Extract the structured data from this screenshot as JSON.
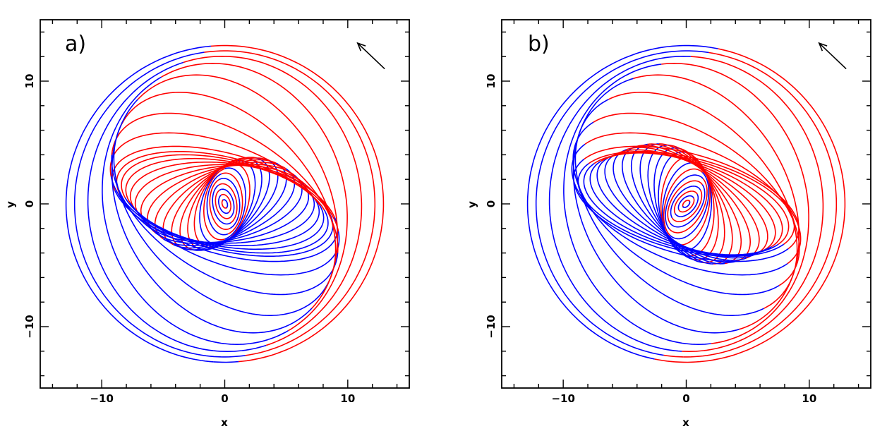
{
  "chart_data": [
    {
      "type": "line",
      "panel_label": "a)",
      "xlabel": "x",
      "ylabel": "y",
      "xlim": [
        -15,
        15
      ],
      "ylim": [
        -15,
        15
      ],
      "xticks_labeled": [
        -10,
        0,
        10
      ],
      "yticks_labeled": [
        -10,
        0,
        10
      ],
      "tick_labels": {
        "x": [
          "−10",
          "0",
          "10"
        ],
        "y": [
          "−10",
          "0",
          "10"
        ]
      },
      "series_colors": [
        "#ff0000",
        "#0000ff"
      ],
      "orbit_family": {
        "description_shown": "nested elliptical orbits, twisted into two spiral arms, colored red/blue by sign",
        "count": 30,
        "radius_min": 0.35,
        "radius_max": 12.9,
        "axis_ratio_inner": 0.6,
        "axis_ratio_middle": 0.42,
        "axis_ratio_outer": 1.0,
        "bar_semi_major": 9.0,
        "bar_orientation_deg": -14,
        "inner_twist_deg": 120,
        "outer_twist_deg": -80,
        "inner_rotation_sign": 1
      },
      "arrow": {
        "from": [
          13,
          11
        ],
        "to": [
          10.8,
          13.1
        ]
      }
    },
    {
      "type": "line",
      "panel_label": "b)",
      "xlabel": "x",
      "ylabel": "y",
      "xlim": [
        -15,
        15
      ],
      "ylim": [
        -15,
        15
      ],
      "xticks_labeled": [
        -10,
        0,
        10
      ],
      "yticks_labeled": [
        -10,
        0,
        10
      ],
      "tick_labels": {
        "x": [
          "−10",
          "0",
          "10"
        ],
        "y": [
          "−10",
          "0",
          "10"
        ]
      },
      "series_colors": [
        "#ff0000",
        "#0000ff"
      ],
      "orbit_family": {
        "count": 30,
        "radius_min": 0.35,
        "radius_max": 12.9,
        "axis_ratio_inner": 0.6,
        "axis_ratio_middle": 0.42,
        "axis_ratio_outer": 1.0,
        "bar_semi_major": 9.0,
        "bar_orientation_deg": -14,
        "inner_twist_deg": -120,
        "outer_twist_deg": -80,
        "inner_rotation_sign": -1
      },
      "arrow": {
        "from": [
          13,
          11
        ],
        "to": [
          10.8,
          13.1
        ]
      }
    }
  ]
}
